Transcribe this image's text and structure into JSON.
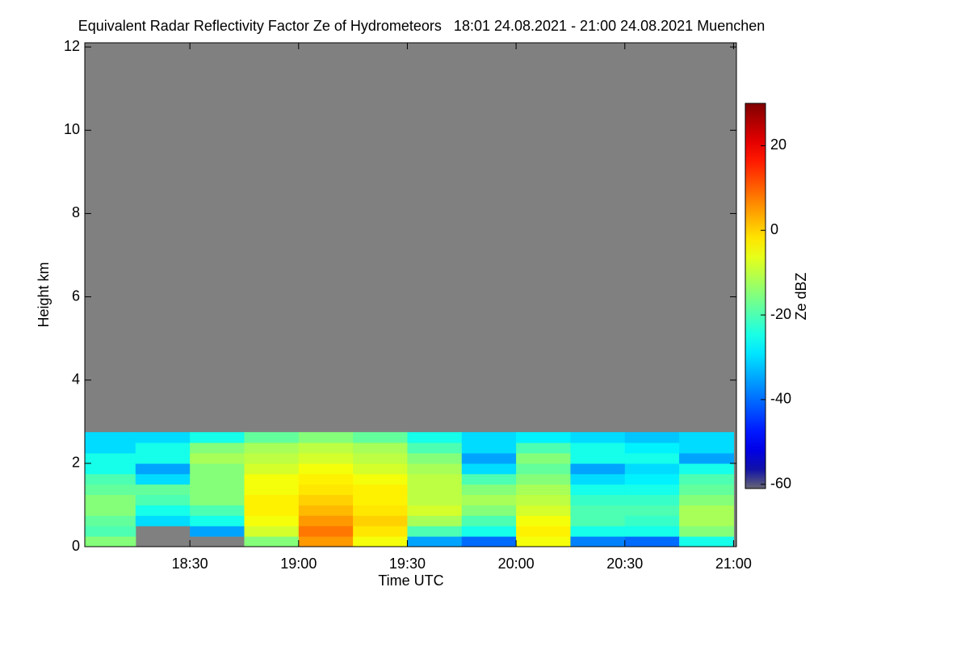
{
  "chart_data": {
    "type": "heatmap",
    "title": "Equivalent Radar Reflectivity Factor Ze of Hydrometeors   18:01 24.08.2021 - 21:00 24.08.2021 Muenchen",
    "x_label": "Time UTC",
    "y_label": "Height km",
    "colorbar_label": "Ze dBZ",
    "colormap": "jet",
    "background": "#808080",
    "x": [
      18.125,
      18.375,
      18.625,
      18.875,
      19.125,
      19.375,
      19.625,
      19.875,
      20.125,
      20.375,
      20.625,
      20.875
    ],
    "y": [
      0.125,
      0.375,
      0.625,
      0.875,
      1.125,
      1.375,
      1.625,
      1.875,
      2.125,
      2.375,
      2.625
    ],
    "z": [
      [
        -15,
        -20,
        -18,
        -15,
        -15,
        -18,
        -20,
        -25,
        -25,
        -30,
        -30
      ],
      [
        null,
        null,
        -30,
        -25,
        -20,
        -18,
        -30,
        -35,
        -25,
        -25,
        -30
      ],
      [
        null,
        -35,
        -25,
        -20,
        -15,
        -15,
        -15,
        -15,
        -12,
        -15,
        -25
      ],
      [
        -15,
        -8,
        -5,
        -3,
        -3,
        -5,
        -5,
        -8,
        -10,
        -12,
        -18
      ],
      [
        5,
        8,
        5,
        2,
        0,
        -2,
        -3,
        -5,
        -8,
        -10,
        -15
      ],
      [
        -5,
        -2,
        0,
        -2,
        -3,
        -3,
        -5,
        -8,
        -10,
        -12,
        -18
      ],
      [
        -35,
        -20,
        -12,
        -8,
        -10,
        -10,
        -10,
        -12,
        -15,
        -20,
        -25
      ],
      [
        -40,
        -25,
        -20,
        -15,
        -12,
        -15,
        -20,
        -30,
        -35,
        -30,
        -30
      ],
      [
        -5,
        -3,
        -5,
        -8,
        -10,
        -12,
        -15,
        -18,
        -15,
        -20,
        -28
      ],
      [
        -38,
        -25,
        -20,
        -20,
        -22,
        -25,
        -30,
        -35,
        -25,
        -25,
        -30
      ],
      [
        -40,
        -25,
        -22,
        -20,
        -22,
        -25,
        -28,
        -30,
        -25,
        -28,
        -32
      ],
      [
        -25,
        -15,
        -12,
        -12,
        -15,
        -18,
        -20,
        -25,
        -35,
        -30,
        -30
      ]
    ],
    "xlim": [
      18.0167,
      21.0133
    ],
    "xticks": [
      {
        "value": 18.5,
        "label": "18:30"
      },
      {
        "value": 19,
        "label": "19:00"
      },
      {
        "value": 19.5,
        "label": "19:30"
      },
      {
        "value": 20,
        "label": "20:00"
      },
      {
        "value": 20.5,
        "label": "20:30"
      },
      {
        "value": 21,
        "label": "21:00"
      }
    ],
    "ylim": [
      0,
      12.1
    ],
    "yticks": [
      0,
      2,
      4,
      6,
      8,
      10,
      12
    ],
    "zlim": [
      -61,
      30
    ],
    "zticks": [
      -60,
      -40,
      -20,
      0,
      20
    ]
  }
}
